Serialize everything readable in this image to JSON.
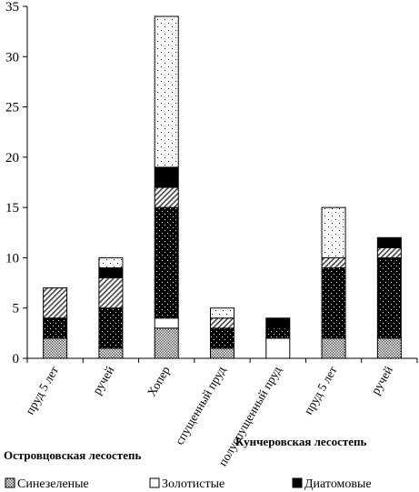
{
  "chart_data": {
    "type": "bar",
    "stacked": true,
    "title": "",
    "xlabel": "",
    "ylabel": "",
    "ylim": [
      0,
      35
    ],
    "yticks": [
      0,
      5,
      10,
      15,
      20,
      25,
      30,
      35
    ],
    "grid": false,
    "legend_position": "bottom",
    "categories": [
      "пруд 5 лет",
      "ручей",
      "Хопер",
      "спущенный пруд",
      "полуспущенный пруд",
      "пруд 5 лет",
      "ручей"
    ],
    "groups": [
      {
        "label": "Островцовская лесостепь",
        "categories": [
          0,
          1,
          2,
          3
        ]
      },
      {
        "label": "Кунчеровская лесостепь",
        "categories": [
          4,
          5,
          6
        ]
      }
    ],
    "series": [
      {
        "name": "Синезеленые",
        "values": [
          2,
          1,
          3,
          1,
          0,
          2,
          2
        ]
      },
      {
        "values": [
          0,
          0,
          1,
          0,
          2,
          0,
          0
        ]
      },
      {
        "values": [
          2,
          4,
          11,
          2,
          1,
          7,
          8
        ]
      },
      {
        "values": [
          3,
          3,
          2,
          1,
          0,
          1,
          1
        ]
      },
      {
        "name": "Диатомовые",
        "values": [
          0,
          1,
          2,
          0,
          1,
          0,
          1
        ]
      },
      {
        "name": "Золотистые",
        "values": [
          0,
          1,
          15,
          1,
          0,
          5,
          0
        ]
      }
    ]
  },
  "legend": [
    {
      "label": "Синезеленые",
      "swatch": "checker"
    },
    {
      "label": "Золотистые",
      "swatch": "white"
    },
    {
      "label": "Диатомовые",
      "swatch": "black"
    }
  ]
}
